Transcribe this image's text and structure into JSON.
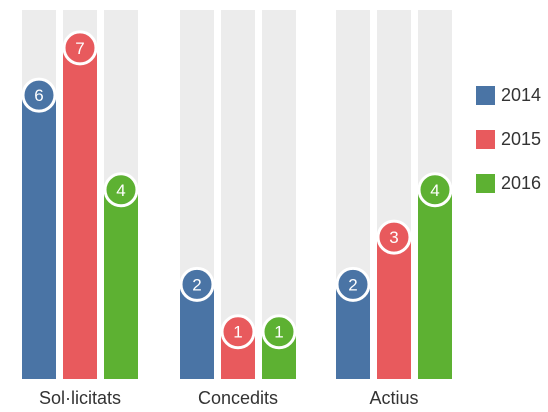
{
  "chart_data": {
    "type": "bar",
    "categories": [
      "Sol·licitats",
      "Concedits",
      "Actius"
    ],
    "series": [
      {
        "name": "2014",
        "values": [
          6,
          2,
          2
        ],
        "color": "#4a74a5"
      },
      {
        "name": "2015",
        "values": [
          7,
          1,
          3
        ],
        "color": "#e85a5d"
      },
      {
        "name": "2016",
        "values": [
          4,
          1,
          4
        ],
        "color": "#5db132"
      }
    ],
    "ylim": [
      0,
      7.8
    ],
    "background_bar_color": "#ececec",
    "legend_position": "right",
    "grid": false
  }
}
